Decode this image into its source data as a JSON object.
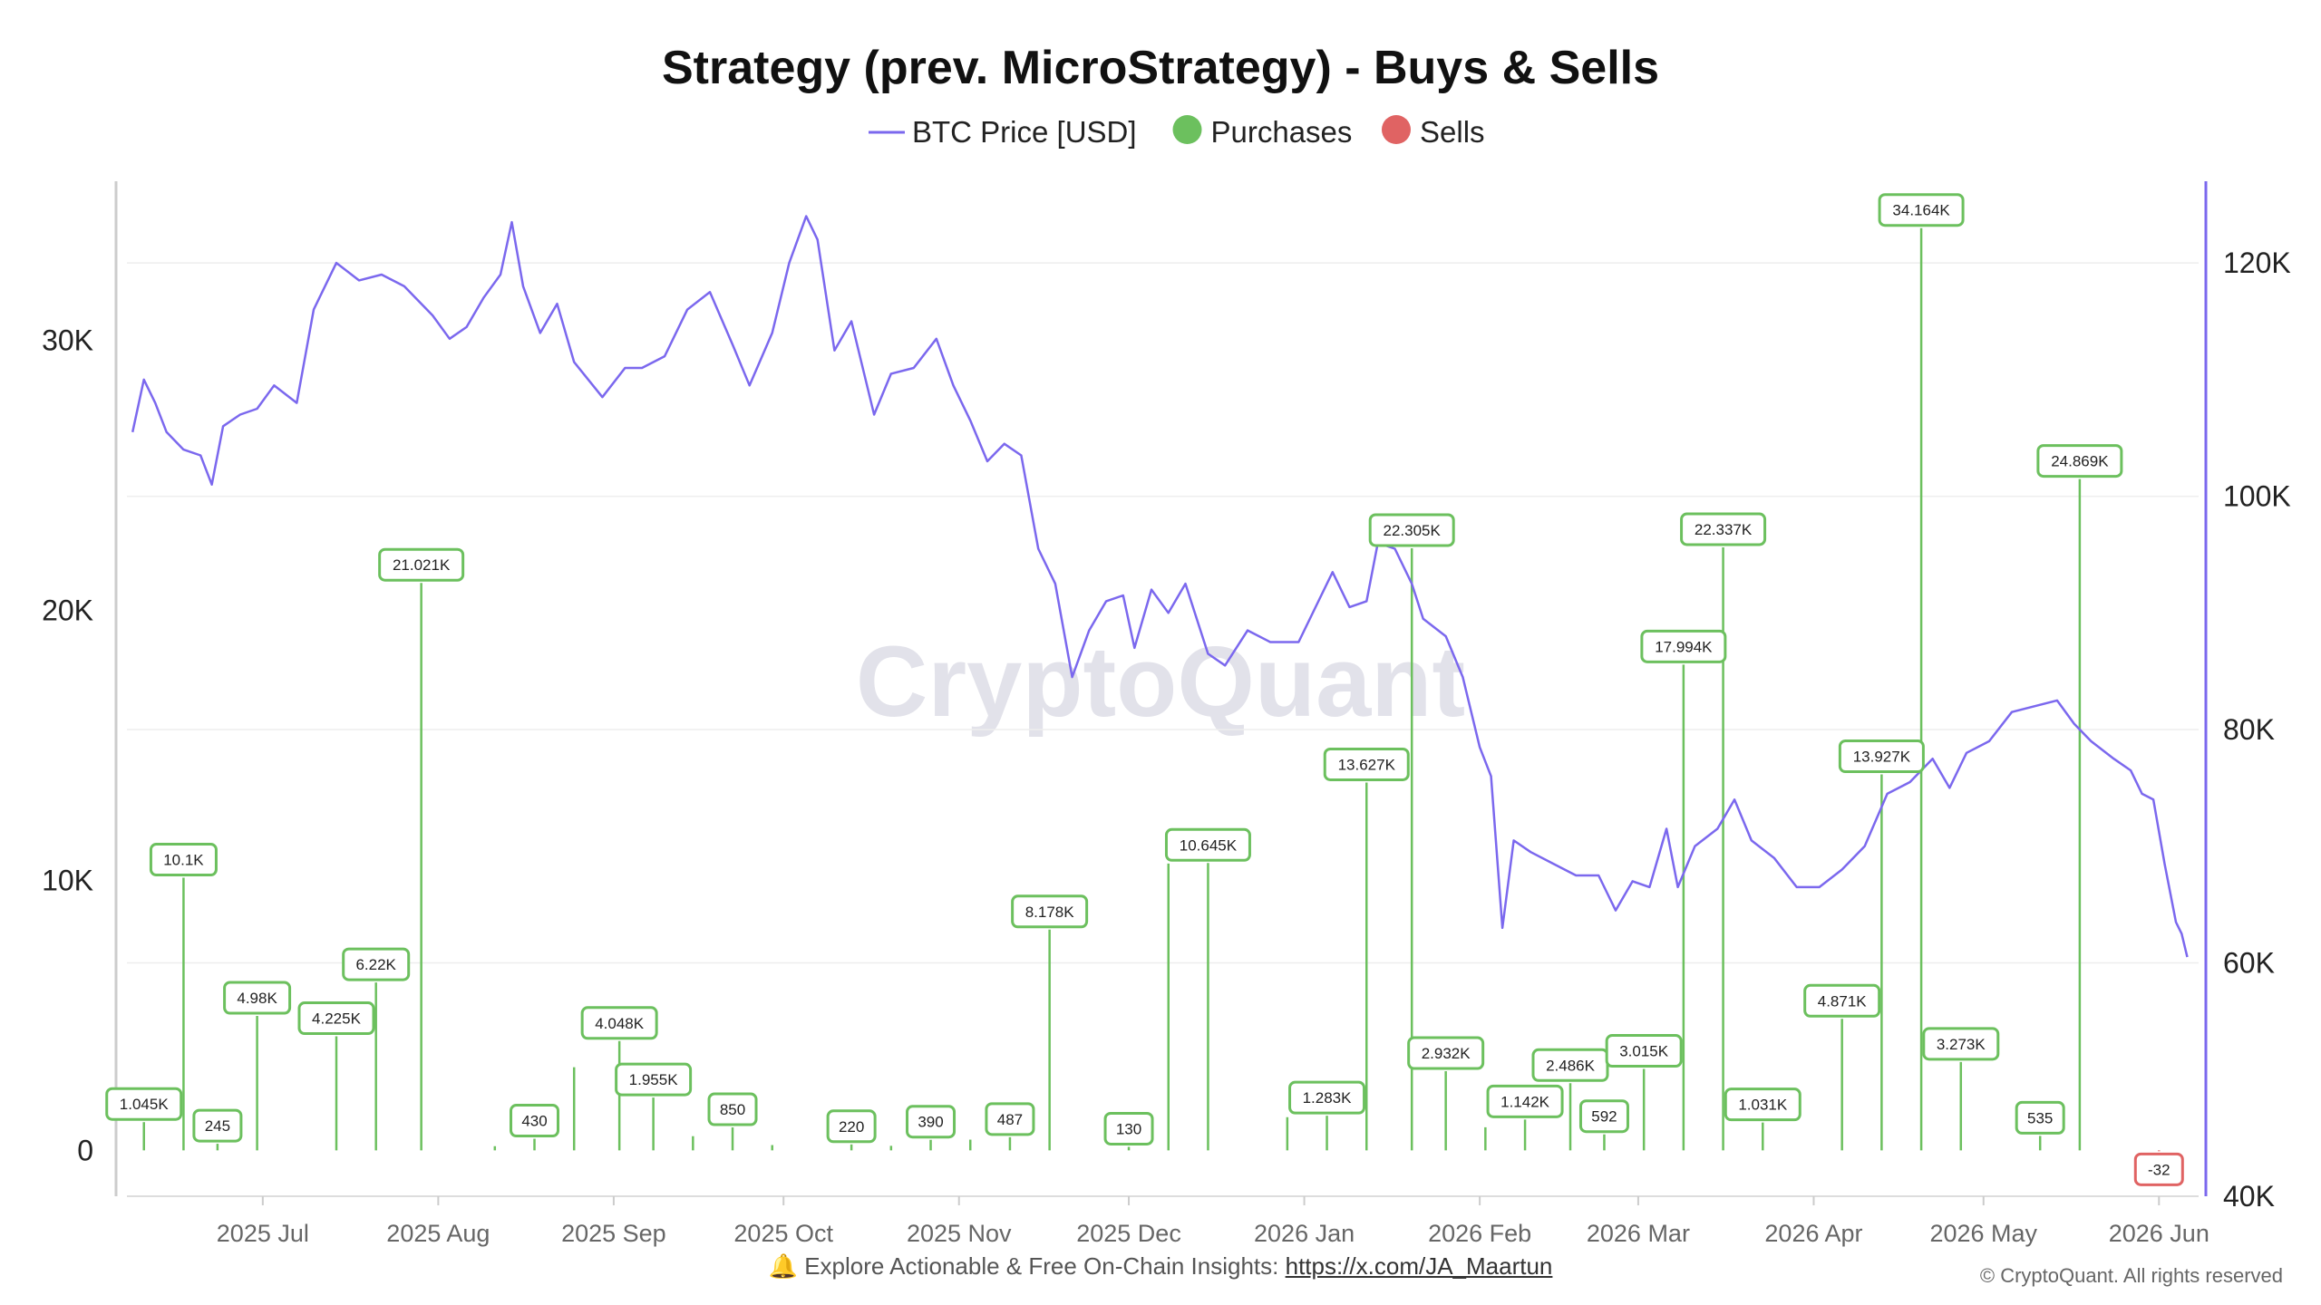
{
  "chart_data": {
    "type": "line+bar",
    "title": "Strategy (prev. MicroStrategy) - Buys & Sells",
    "legend": [
      {
        "key": "price",
        "label": "BTC Price [USD]",
        "color": "#7b68ee",
        "marker": "line"
      },
      {
        "key": "buy",
        "label": "Purchases",
        "color": "#6cc05e",
        "marker": "dot"
      },
      {
        "key": "sell",
        "label": "Sells",
        "color": "#e06363",
        "marker": "dot"
      }
    ],
    "legend_position": "top-center",
    "watermark": "CryptoQuant",
    "left_axis": {
      "ticks": [
        0,
        10000,
        20000,
        30000
      ],
      "tick_labels": [
        "0",
        "10K",
        "20K",
        "30K"
      ],
      "range": [
        -1700,
        35900
      ]
    },
    "right_axis": {
      "ticks": [
        40000,
        60000,
        80000,
        100000,
        120000
      ],
      "tick_labels": [
        "40K",
        "60K",
        "80K",
        "100K",
        "120K"
      ],
      "range": [
        40000,
        127000
      ]
    },
    "x_range": [
      "2025-06-07",
      "2026-06-08"
    ],
    "x_ticks": [
      {
        "date": "2025-07-01",
        "label": "2025 Jul"
      },
      {
        "date": "2025-08-01",
        "label": "2025 Aug"
      },
      {
        "date": "2025-09-01",
        "label": "2025 Sep"
      },
      {
        "date": "2025-10-01",
        "label": "2025 Oct"
      },
      {
        "date": "2025-11-01",
        "label": "2025 Nov"
      },
      {
        "date": "2025-12-01",
        "label": "2025 Dec"
      },
      {
        "date": "2026-01-01",
        "label": "2026 Jan"
      },
      {
        "date": "2026-02-01",
        "label": "2026 Feb"
      },
      {
        "date": "2026-03-01",
        "label": "2026 Mar"
      },
      {
        "date": "2026-04-01",
        "label": "2026 Apr"
      },
      {
        "date": "2026-05-01",
        "label": "2026 May"
      },
      {
        "date": "2026-06-01",
        "label": "2026 Jun"
      }
    ],
    "grid": true,
    "series": [
      {
        "name": "BTC Price [USD]",
        "axis": "right",
        "points": [
          [
            "2025-06-08",
            105500
          ],
          [
            "2025-06-10",
            110000
          ],
          [
            "2025-06-12",
            108000
          ],
          [
            "2025-06-14",
            105500
          ],
          [
            "2025-06-17",
            104000
          ],
          [
            "2025-06-20",
            103500
          ],
          [
            "2025-06-22",
            101000
          ],
          [
            "2025-06-24",
            106000
          ],
          [
            "2025-06-27",
            107000
          ],
          [
            "2025-06-30",
            107500
          ],
          [
            "2025-07-03",
            109500
          ],
          [
            "2025-07-07",
            108000
          ],
          [
            "2025-07-10",
            116000
          ],
          [
            "2025-07-14",
            120000
          ],
          [
            "2025-07-18",
            118500
          ],
          [
            "2025-07-22",
            119000
          ],
          [
            "2025-07-26",
            118000
          ],
          [
            "2025-07-31",
            115500
          ],
          [
            "2025-08-03",
            113500
          ],
          [
            "2025-08-06",
            114500
          ],
          [
            "2025-08-09",
            117000
          ],
          [
            "2025-08-12",
            119000
          ],
          [
            "2025-08-14",
            123500
          ],
          [
            "2025-08-16",
            118000
          ],
          [
            "2025-08-19",
            114000
          ],
          [
            "2025-08-22",
            116500
          ],
          [
            "2025-08-25",
            111500
          ],
          [
            "2025-08-30",
            108500
          ],
          [
            "2025-09-03",
            111000
          ],
          [
            "2025-09-06",
            111000
          ],
          [
            "2025-09-10",
            112000
          ],
          [
            "2025-09-14",
            116000
          ],
          [
            "2025-09-18",
            117500
          ],
          [
            "2025-09-22",
            113000
          ],
          [
            "2025-09-25",
            109500
          ],
          [
            "2025-09-29",
            114000
          ],
          [
            "2025-10-02",
            120000
          ],
          [
            "2025-10-05",
            124000
          ],
          [
            "2025-10-07",
            122000
          ],
          [
            "2025-10-10",
            112500
          ],
          [
            "2025-10-13",
            115000
          ],
          [
            "2025-10-17",
            107000
          ],
          [
            "2025-10-20",
            110500
          ],
          [
            "2025-10-24",
            111000
          ],
          [
            "2025-10-28",
            113500
          ],
          [
            "2025-10-31",
            109500
          ],
          [
            "2025-11-03",
            106500
          ],
          [
            "2025-11-06",
            103000
          ],
          [
            "2025-11-09",
            104500
          ],
          [
            "2025-11-12",
            103500
          ],
          [
            "2025-11-15",
            95500
          ],
          [
            "2025-11-18",
            92500
          ],
          [
            "2025-11-21",
            84500
          ],
          [
            "2025-11-24",
            88500
          ],
          [
            "2025-11-27",
            91000
          ],
          [
            "2025-11-30",
            91500
          ],
          [
            "2025-12-02",
            87000
          ],
          [
            "2025-12-05",
            92000
          ],
          [
            "2025-12-08",
            90000
          ],
          [
            "2025-12-11",
            92500
          ],
          [
            "2025-12-15",
            86500
          ],
          [
            "2025-12-18",
            85500
          ],
          [
            "2025-12-22",
            88500
          ],
          [
            "2025-12-26",
            87500
          ],
          [
            "2025-12-31",
            87500
          ],
          [
            "2026-01-04",
            91500
          ],
          [
            "2026-01-06",
            93500
          ],
          [
            "2026-01-09",
            90500
          ],
          [
            "2026-01-12",
            91000
          ],
          [
            "2026-01-14",
            96000
          ],
          [
            "2026-01-17",
            95500
          ],
          [
            "2026-01-20",
            92500
          ],
          [
            "2026-01-22",
            89500
          ],
          [
            "2026-01-26",
            88000
          ],
          [
            "2026-01-29",
            84500
          ],
          [
            "2026-02-01",
            78500
          ],
          [
            "2026-02-03",
            76000
          ],
          [
            "2026-02-05",
            63000
          ],
          [
            "2026-02-07",
            70500
          ],
          [
            "2026-02-10",
            69500
          ],
          [
            "2026-02-14",
            68500
          ],
          [
            "2026-02-18",
            67500
          ],
          [
            "2026-02-22",
            67500
          ],
          [
            "2026-02-25",
            64500
          ],
          [
            "2026-02-28",
            67000
          ],
          [
            "2026-03-03",
            66500
          ],
          [
            "2026-03-06",
            71500
          ],
          [
            "2026-03-08",
            66500
          ],
          [
            "2026-03-11",
            70000
          ],
          [
            "2026-03-15",
            71500
          ],
          [
            "2026-03-18",
            74000
          ],
          [
            "2026-03-21",
            70500
          ],
          [
            "2026-03-25",
            69000
          ],
          [
            "2026-03-29",
            66500
          ],
          [
            "2026-04-02",
            66500
          ],
          [
            "2026-04-06",
            68000
          ],
          [
            "2026-04-10",
            70000
          ],
          [
            "2026-04-14",
            74500
          ],
          [
            "2026-04-18",
            75500
          ],
          [
            "2026-04-22",
            77500
          ],
          [
            "2026-04-25",
            75000
          ],
          [
            "2026-04-28",
            78000
          ],
          [
            "2026-05-02",
            79000
          ],
          [
            "2026-05-06",
            81500
          ],
          [
            "2026-05-10",
            82000
          ],
          [
            "2026-05-14",
            82500
          ],
          [
            "2026-05-17",
            80500
          ],
          [
            "2026-05-20",
            79000
          ],
          [
            "2026-05-24",
            77500
          ],
          [
            "2026-05-27",
            76500
          ],
          [
            "2026-05-29",
            74500
          ],
          [
            "2026-05-31",
            74000
          ],
          [
            "2026-06-02",
            68500
          ],
          [
            "2026-06-04",
            63500
          ],
          [
            "2026-06-05",
            62500
          ],
          [
            "2026-06-06",
            60500
          ]
        ]
      },
      {
        "name": "Purchases",
        "axis": "left",
        "points": [
          [
            "2025-06-10",
            1045
          ],
          [
            "2025-06-17",
            10100
          ],
          [
            "2025-06-23",
            245
          ],
          [
            "2025-06-30",
            4980
          ],
          [
            "2025-07-14",
            4225
          ],
          [
            "2025-07-21",
            6220
          ],
          [
            "2025-07-29",
            21021
          ],
          [
            "2025-08-11",
            155
          ],
          [
            "2025-08-18",
            430
          ],
          [
            "2025-08-25",
            3081
          ],
          [
            "2025-09-02",
            4048
          ],
          [
            "2025-09-08",
            1955
          ],
          [
            "2025-09-15",
            525
          ],
          [
            "2025-09-22",
            850
          ],
          [
            "2025-09-29",
            196
          ],
          [
            "2025-10-13",
            220
          ],
          [
            "2025-10-20",
            168
          ],
          [
            "2025-10-27",
            390
          ],
          [
            "2025-11-03",
            397
          ],
          [
            "2025-11-10",
            487
          ],
          [
            "2025-11-17",
            8178
          ],
          [
            "2025-12-01",
            130
          ],
          [
            "2025-12-08",
            10624
          ],
          [
            "2025-12-15",
            10645
          ],
          [
            "2025-12-29",
            1229
          ],
          [
            "2026-01-05",
            1283
          ],
          [
            "2026-01-12",
            13627
          ],
          [
            "2026-01-20",
            22305
          ],
          [
            "2026-01-26",
            2932
          ],
          [
            "2026-02-02",
            855
          ],
          [
            "2026-02-09",
            1142
          ],
          [
            "2026-02-17",
            2486
          ],
          [
            "2026-02-23",
            592
          ],
          [
            "2026-03-02",
            3015
          ],
          [
            "2026-03-09",
            17994
          ],
          [
            "2026-03-16",
            22337
          ],
          [
            "2026-03-23",
            1031
          ],
          [
            "2026-04-06",
            4871
          ],
          [
            "2026-04-13",
            13927
          ],
          [
            "2026-04-20",
            34164
          ],
          [
            "2026-04-27",
            3273
          ],
          [
            "2026-05-11",
            535
          ],
          [
            "2026-05-18",
            24869
          ]
        ],
        "labels": {
          "2025-06-10": "1.045K",
          "2025-06-17": "10.1K",
          "2025-06-23": "245",
          "2025-06-30": "4.98K",
          "2025-07-14": "4.225K",
          "2025-07-21": "6.22K",
          "2025-07-29": "21.021K",
          "2025-08-18": "430",
          "2025-09-02": "4.048K",
          "2025-09-08": "1.955K",
          "2025-09-22": "850",
          "2025-10-13": "220",
          "2025-10-27": "390",
          "2025-11-10": "487",
          "2025-11-17": "8.178K",
          "2025-12-01": "130",
          "2025-12-15": "10.645K",
          "2026-01-05": "1.283K",
          "2026-01-12": "13.627K",
          "2026-01-20": "22.305K",
          "2026-01-26": "2.932K",
          "2026-02-09": "1.142K",
          "2026-02-17": "2.486K",
          "2026-02-23": "592",
          "2026-03-02": "3.015K",
          "2026-03-09": "17.994K",
          "2026-03-16": "22.337K",
          "2026-03-23": "1.031K",
          "2026-04-06": "4.871K",
          "2026-04-13": "13.927K",
          "2026-04-20": "34.164K",
          "2026-04-27": "3.273K",
          "2026-05-11": "535",
          "2026-05-18": "24.869K"
        }
      },
      {
        "name": "Sells",
        "axis": "left",
        "points": [
          [
            "2026-06-01",
            -32
          ]
        ],
        "labels": {
          "2026-06-01": "-32"
        }
      }
    ]
  },
  "footer": {
    "icon": "bell-icon",
    "bell_glyph": "🔔",
    "text": "Explore Actionable & Free On-Chain Insights:",
    "link": "https://x.com/JA_Maartun",
    "copyright": "© CryptoQuant. All rights reserved"
  }
}
